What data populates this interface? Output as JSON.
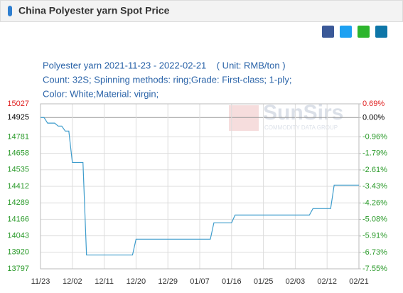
{
  "header": {
    "title": "China Polyester yarn Spot Price"
  },
  "chart_data": {
    "type": "line",
    "subtitle_lines": [
      "Polyester yarn 2021-11-23 - 2022-02-21    ( Unit: RMB/ton )",
      "Count: 32S; Spinning methods: ring;Grade: First-class; 1-ply;",
      "Color: White;Material: virgin;"
    ],
    "watermark": {
      "brand": "SunSirs",
      "tagline": "COMMODITY DATA GROUP"
    },
    "categories": [
      "11/23",
      null,
      null,
      null,
      null,
      null,
      null,
      null,
      null,
      "12/02",
      null,
      null,
      null,
      null,
      null,
      null,
      null,
      null,
      "12/11",
      null,
      null,
      null,
      null,
      null,
      null,
      null,
      null,
      "12/20",
      null,
      null,
      null,
      null,
      null,
      null,
      null,
      null,
      "12/29",
      null,
      null,
      null,
      null,
      null,
      null,
      null,
      null,
      "01/07",
      null,
      null,
      null,
      null,
      null,
      null,
      null,
      null,
      "01/16",
      null,
      null,
      null,
      null,
      null,
      null,
      null,
      null,
      "01/25",
      null,
      null,
      null,
      null,
      null,
      null,
      null,
      null,
      "02/03",
      null,
      null,
      null,
      null,
      null,
      null,
      null,
      null,
      "02/12",
      null,
      null,
      null,
      null,
      null,
      null,
      null,
      null,
      "02/21"
    ],
    "values": [
      14925,
      14925,
      14883,
      14883,
      14883,
      14861,
      14861,
      14824,
      14824,
      14590,
      14590,
      14590,
      14590,
      13900,
      13900,
      13900,
      13900,
      13900,
      13900,
      13900,
      13900,
      13900,
      13900,
      13900,
      13900,
      13900,
      13900,
      14018,
      14018,
      14018,
      14018,
      14018,
      14018,
      14018,
      14018,
      14018,
      14018,
      14018,
      14018,
      14018,
      14018,
      14018,
      14018,
      14018,
      14018,
      14018,
      14018,
      14018,
      14018,
      14140,
      14140,
      14140,
      14140,
      14140,
      14140,
      14198,
      14198,
      14198,
      14198,
      14198,
      14198,
      14198,
      14198,
      14198,
      14198,
      14198,
      14198,
      14198,
      14198,
      14198,
      14198,
      14198,
      14198,
      14198,
      14198,
      14198,
      14198,
      14246,
      14246,
      14246,
      14246,
      14246,
      14246,
      14421,
      14421,
      14421,
      14421,
      14421,
      14421,
      14421,
      14421
    ],
    "color": "#3d9ccc",
    "ylim": [
      13797,
      15027
    ],
    "yticks": [
      15027,
      14925,
      14781,
      14658,
      14535,
      14412,
      14289,
      14166,
      14043,
      13920,
      13797
    ],
    "y2lim": [
      -7.55,
      0.69
    ],
    "y2ticks": [
      {
        "value": 0.69,
        "label": "0.69%"
      },
      {
        "value": 0.0,
        "label": "0.00%"
      },
      {
        "value": -0.96,
        "label": "-0.96%"
      },
      {
        "value": -1.79,
        "label": "-1.79%"
      },
      {
        "value": -2.61,
        "label": "-2.61%"
      },
      {
        "value": -3.43,
        "label": "-3.43%"
      },
      {
        "value": -4.26,
        "label": "-4.26%"
      },
      {
        "value": -5.08,
        "label": "-5.08%"
      },
      {
        "value": -5.91,
        "label": "-5.91%"
      },
      {
        "value": -6.73,
        "label": "-6.73%"
      },
      {
        "value": -7.55,
        "label": "-7.55%"
      }
    ],
    "tick_colors": {
      "up": "#e02020",
      "flat": "#000000",
      "down": "#2a9a2a"
    },
    "grid": true
  }
}
